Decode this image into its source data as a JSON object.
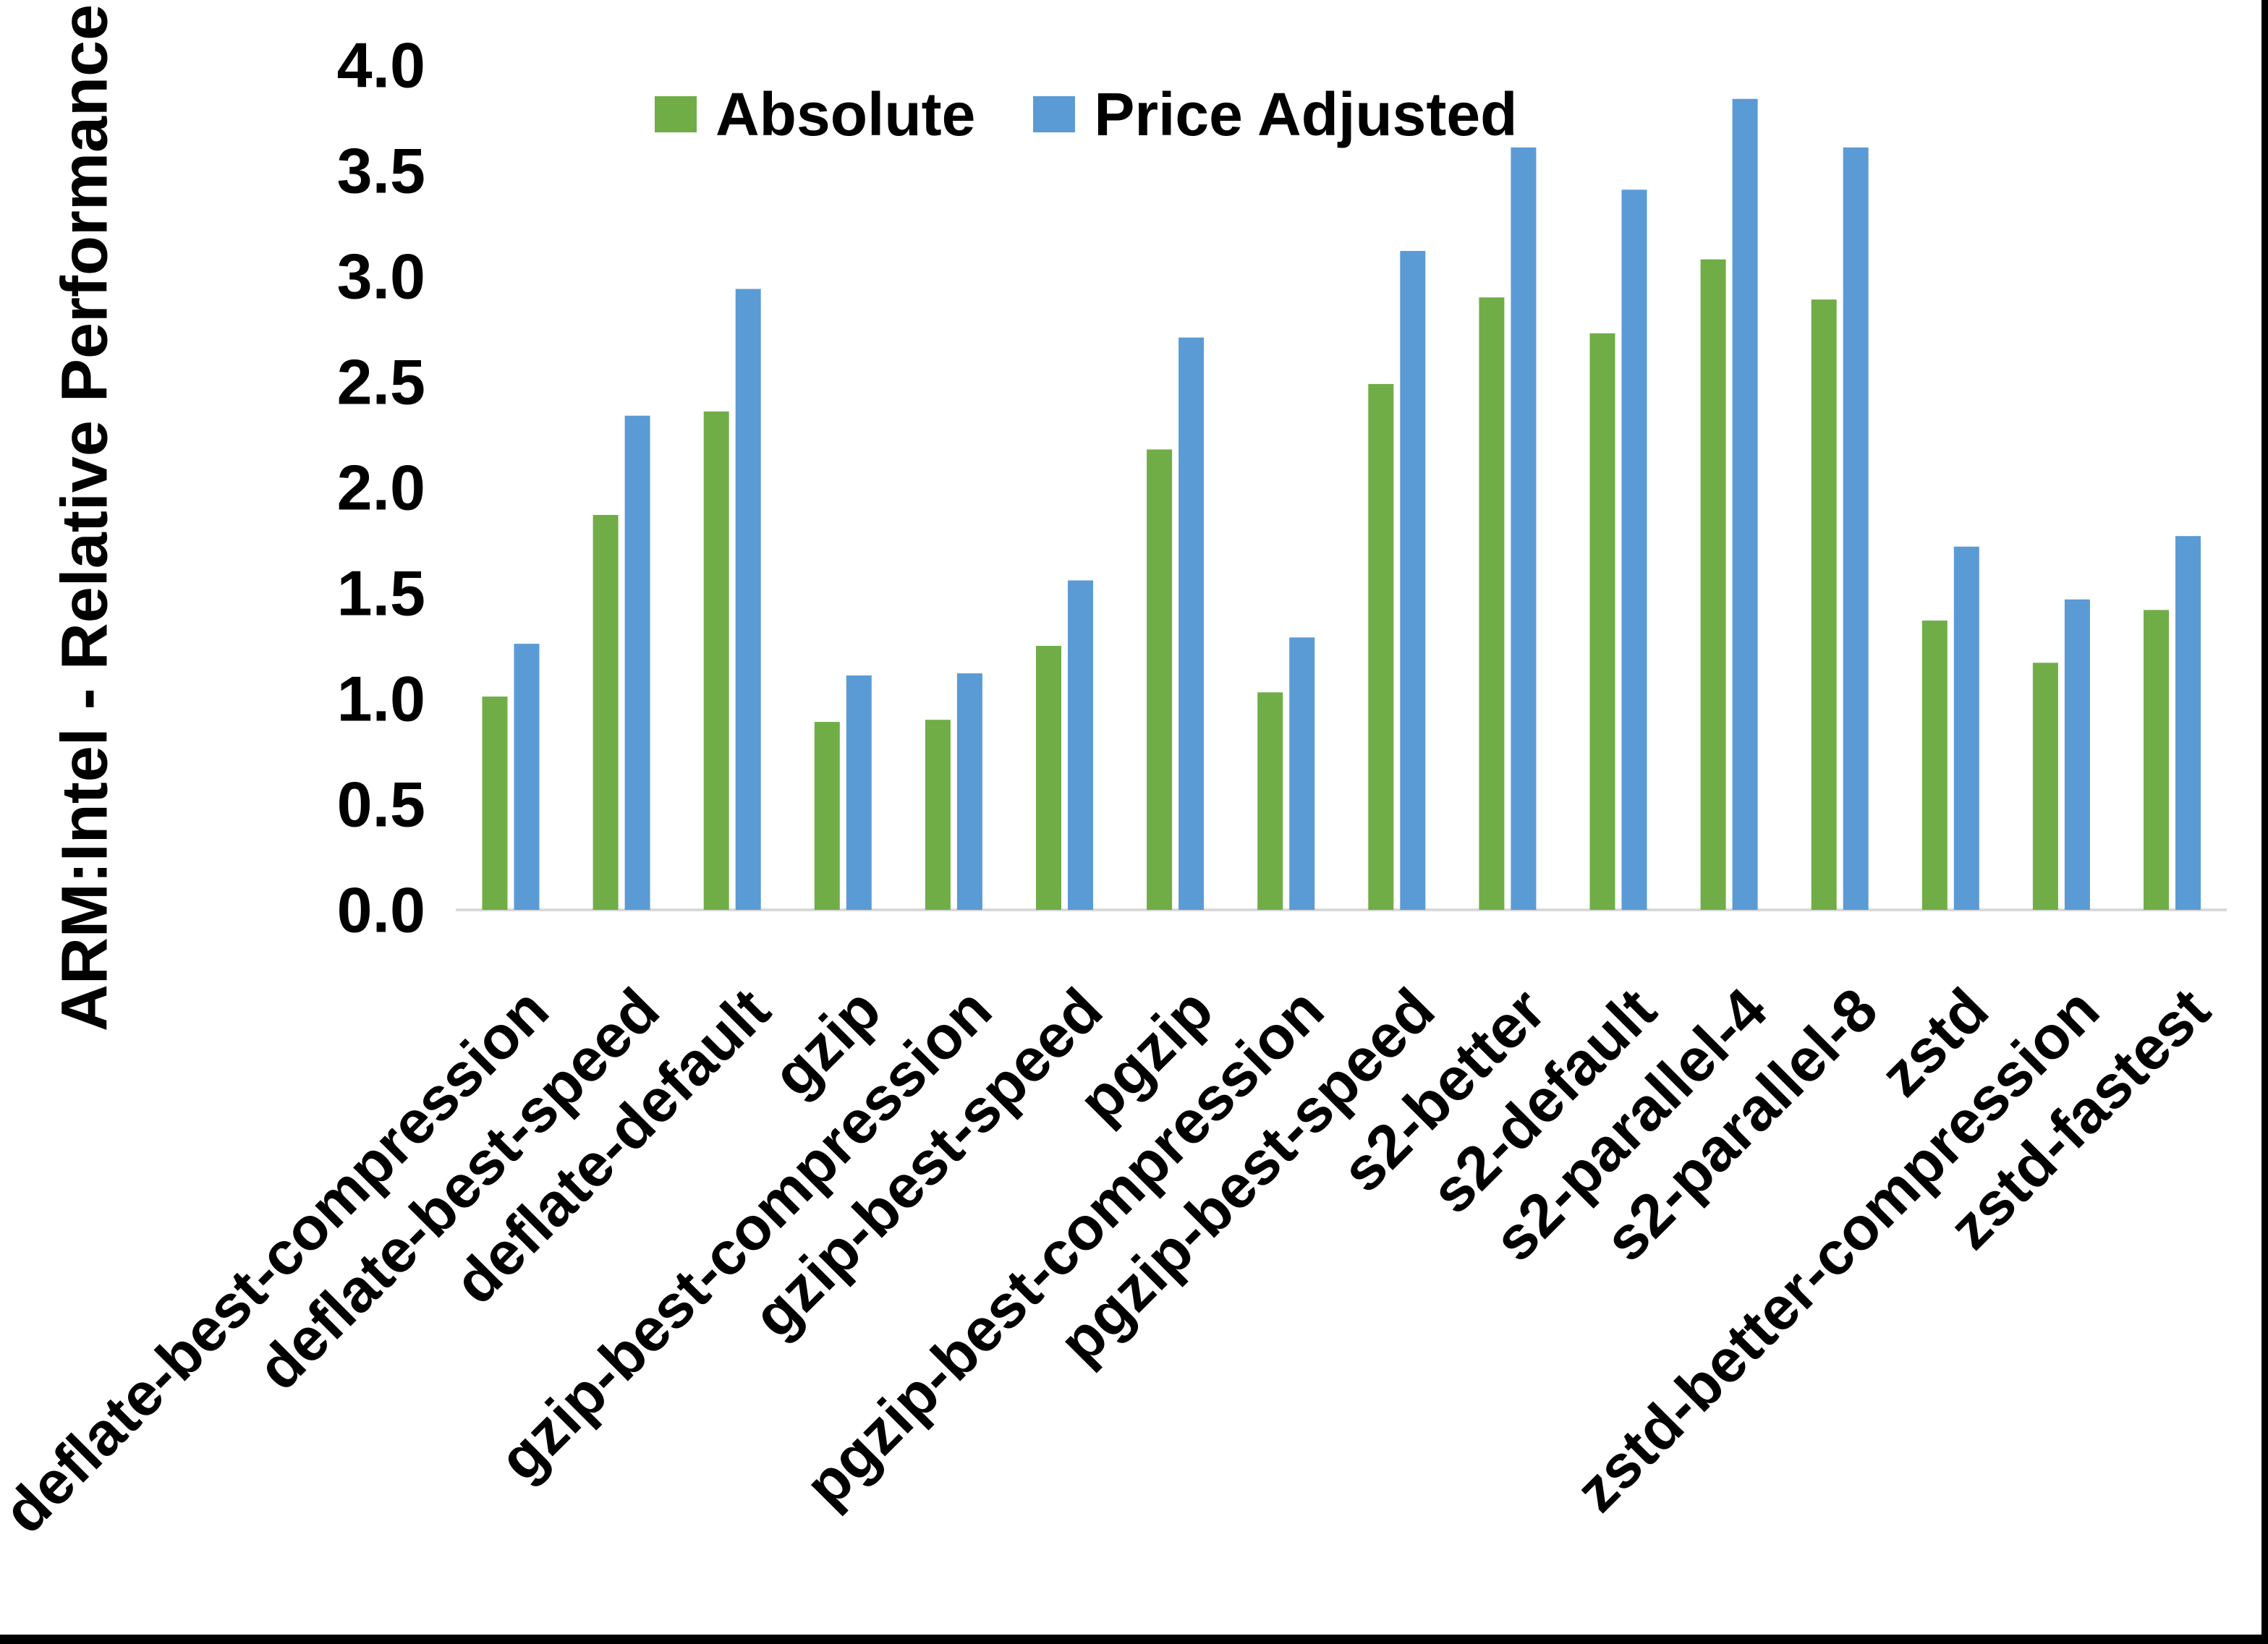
{
  "chart_data": {
    "type": "bar",
    "title": "",
    "xlabel": "",
    "ylabel": "ARM:Intel - Relative Performance",
    "ylim": [
      0.0,
      4.0
    ],
    "ytick_step": 0.5,
    "ytick_labels": [
      "0.0",
      "0.5",
      "1.0",
      "1.5",
      "2.0",
      "2.5",
      "3.0",
      "3.5",
      "4.0"
    ],
    "grid": false,
    "legend_position": "top-center",
    "categories": [
      "deflate-best-compression",
      "deflate-best-speed",
      "deflate-default",
      "gzip",
      "gzip-best-compression",
      "gzip-best-speed",
      "pgzip",
      "pgzip-best-compression",
      "pgzip-best-speed",
      "s2-better",
      "s2-default",
      "s2-parallel-4",
      "s2-parallel-8",
      "zstd",
      "zstd-better-compression",
      "zstd-fastest"
    ],
    "series": [
      {
        "name": "Absolute",
        "color": "#70AD47",
        "values": [
          1.01,
          1.87,
          2.36,
          0.89,
          0.9,
          1.25,
          2.18,
          1.03,
          2.49,
          2.9,
          2.73,
          3.08,
          2.89,
          1.37,
          1.17,
          1.42
        ]
      },
      {
        "name": "Price Adjusted",
        "color": "#5B9BD5",
        "values": [
          1.26,
          2.34,
          2.94,
          1.11,
          1.12,
          1.56,
          2.71,
          1.29,
          3.12,
          3.61,
          3.41,
          3.84,
          3.61,
          1.72,
          1.47,
          1.77
        ]
      }
    ]
  },
  "colors": {
    "background": "#FFFFFF",
    "axis_line": "#D9D9D9",
    "text": "#000000",
    "frame": "#000000"
  }
}
